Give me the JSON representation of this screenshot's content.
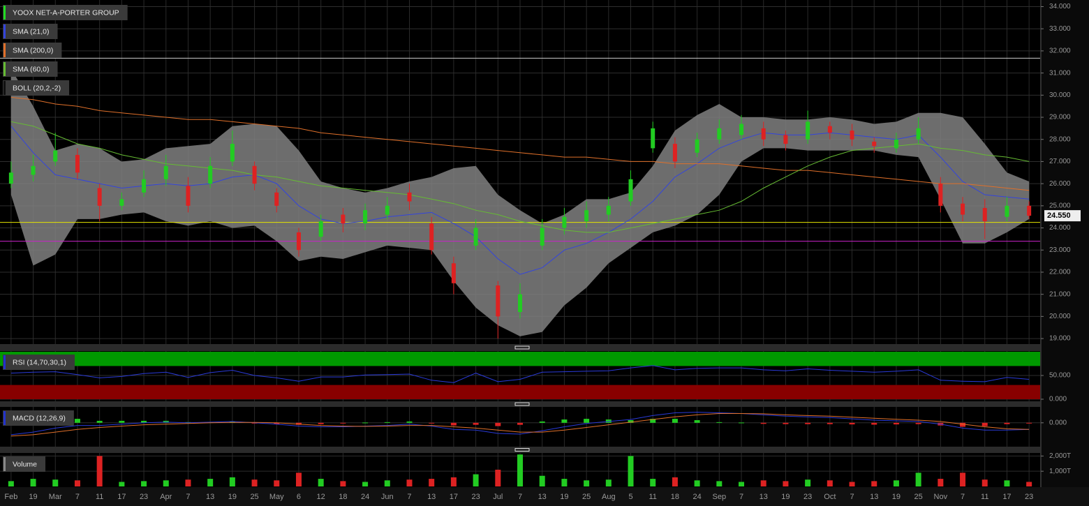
{
  "chart_data": [
    {
      "type": "candlestick",
      "name": "YOOX NET-A-PORTER GROUP",
      "color": "#22dd22",
      "up_color": "#22cc22",
      "down_color": "#dd2222",
      "categories": [
        "Feb",
        "19",
        "Mar",
        "7",
        "11",
        "17",
        "23",
        "Apr",
        "7",
        "13",
        "19",
        "25",
        "May",
        "6",
        "12",
        "18",
        "24",
        "Jun",
        "7",
        "13",
        "17",
        "23",
        "Jul",
        "7",
        "13",
        "19",
        "25",
        "Aug",
        "5",
        "11",
        "18",
        "24",
        "Sep",
        "7",
        "13",
        "19",
        "23",
        "Oct",
        "7",
        "13",
        "19",
        "25",
        "Nov",
        "7",
        "11",
        "17",
        "23"
      ],
      "open": [
        26.0,
        26.4,
        27.0,
        27.3,
        25.8,
        25.0,
        25.6,
        26.2,
        25.9,
        26.0,
        27.0,
        26.8,
        25.6,
        23.8,
        23.6,
        24.6,
        24.2,
        24.6,
        25.6,
        24.2,
        22.4,
        23.2,
        21.4,
        20.2,
        23.2,
        24.0,
        24.3,
        24.6,
        25.2,
        27.6,
        27.8,
        27.4,
        28.0,
        28.2,
        28.5,
        28.2,
        28.0,
        28.6,
        28.4,
        27.9,
        27.6,
        28.0,
        26.0,
        25.1,
        24.9,
        24.5,
        25.0
      ],
      "high": [
        27.0,
        27.3,
        28.3,
        27.6,
        26.0,
        25.6,
        26.6,
        27.3,
        26.3,
        27.2,
        28.4,
        27.0,
        25.8,
        24.0,
        24.6,
        24.9,
        25.1,
        25.4,
        26.0,
        24.5,
        22.7,
        24.4,
        21.6,
        21.5,
        24.4,
        24.9,
        25.2,
        25.4,
        26.6,
        28.8,
        28.1,
        28.3,
        28.9,
        29.1,
        28.8,
        28.4,
        29.3,
        28.8,
        28.7,
        28.1,
        28.3,
        29.0,
        26.3,
        25.4,
        25.3,
        25.4,
        25.2
      ],
      "low": [
        25.8,
        26.1,
        26.8,
        26.2,
        24.3,
        24.8,
        25.4,
        25.9,
        24.7,
        25.8,
        26.8,
        25.7,
        24.7,
        22.7,
        23.4,
        23.8,
        23.9,
        24.4,
        24.8,
        22.8,
        21.0,
        23.0,
        19.0,
        19.9,
        23.0,
        23.7,
        24.0,
        24.3,
        25.0,
        27.4,
        26.7,
        27.2,
        27.8,
        28.0,
        27.7,
        27.5,
        27.8,
        28.0,
        27.7,
        27.4,
        27.4,
        27.8,
        24.7,
        24.3,
        23.5,
        24.3,
        24.4
      ],
      "close": [
        26.5,
        26.8,
        27.5,
        26.5,
        25.0,
        25.3,
        26.2,
        26.8,
        25.0,
        26.8,
        27.8,
        26.0,
        25.0,
        23.0,
        24.3,
        24.2,
        24.8,
        25.0,
        25.2,
        23.0,
        21.5,
        24.0,
        20.0,
        21.0,
        24.0,
        24.5,
        24.8,
        25.0,
        26.2,
        28.5,
        27.0,
        28.0,
        28.5,
        28.7,
        28.0,
        27.8,
        28.8,
        28.3,
        28.0,
        27.7,
        28.0,
        28.5,
        25.0,
        24.6,
        24.3,
        25.0,
        24.55
      ],
      "overlays": [
        {
          "name": "SMA (21,0)",
          "color": "#3344dd",
          "values": [
            28.6,
            27.4,
            26.4,
            26.2,
            26.0,
            25.8,
            25.9,
            26.0,
            25.9,
            26.0,
            26.3,
            26.4,
            26.0,
            25.0,
            24.4,
            24.2,
            24.3,
            24.5,
            24.6,
            24.7,
            24.2,
            23.6,
            22.6,
            21.9,
            22.2,
            23.0,
            23.3,
            23.8,
            24.4,
            25.2,
            26.3,
            26.9,
            27.6,
            28.0,
            28.3,
            28.2,
            28.2,
            28.3,
            28.2,
            28.1,
            28.0,
            28.2,
            27.2,
            26.1,
            25.5,
            25.4,
            25.3
          ]
        },
        {
          "name": "SMA (200,0)",
          "color": "#e0702a",
          "values": [
            29.9,
            29.8,
            29.6,
            29.5,
            29.3,
            29.2,
            29.1,
            29.0,
            28.9,
            28.9,
            28.8,
            28.7,
            28.6,
            28.5,
            28.3,
            28.2,
            28.1,
            28.0,
            27.9,
            27.8,
            27.7,
            27.6,
            27.5,
            27.4,
            27.3,
            27.2,
            27.2,
            27.1,
            27.0,
            27.0,
            26.9,
            26.9,
            26.9,
            26.8,
            26.7,
            26.6,
            26.6,
            26.5,
            26.4,
            26.3,
            26.2,
            26.1,
            26.0,
            26.0,
            25.9,
            25.8,
            25.7
          ]
        },
        {
          "name": "SMA (60,0)",
          "color": "#66bb33",
          "values": [
            28.8,
            28.6,
            28.2,
            27.8,
            27.6,
            27.3,
            27.1,
            26.9,
            26.8,
            26.7,
            26.6,
            26.4,
            26.3,
            26.1,
            25.9,
            25.8,
            25.7,
            25.6,
            25.5,
            25.3,
            25.1,
            24.8,
            24.6,
            24.3,
            24.1,
            23.9,
            23.8,
            23.8,
            24.0,
            24.2,
            24.4,
            24.6,
            24.8,
            25.2,
            25.8,
            26.3,
            26.8,
            27.2,
            27.5,
            27.6,
            27.7,
            27.8,
            27.6,
            27.5,
            27.3,
            27.2,
            27.0
          ]
        }
      ],
      "band": {
        "name": "BOLL (20,2,-2)",
        "color": "#808080",
        "upper": [
          31.2,
          29.5,
          27.5,
          27.8,
          27.6,
          27.0,
          27.1,
          27.6,
          27.7,
          27.8,
          28.6,
          28.7,
          28.6,
          27.5,
          26.1,
          25.8,
          25.6,
          25.8,
          26.1,
          26.3,
          26.7,
          26.8,
          25.5,
          24.8,
          24.2,
          24.6,
          25.3,
          25.3,
          25.6,
          26.8,
          28.4,
          29.1,
          29.6,
          29.0,
          29.0,
          28.9,
          28.9,
          29.0,
          28.9,
          28.7,
          28.8,
          29.2,
          29.2,
          29.0,
          27.8,
          26.5,
          26.1
        ],
        "lower": [
          25.5,
          22.3,
          22.8,
          24.4,
          24.4,
          24.6,
          24.7,
          24.3,
          24.1,
          24.3,
          24.0,
          24.1,
          23.4,
          22.5,
          22.7,
          22.6,
          22.9,
          23.2,
          23.1,
          23.0,
          21.6,
          20.4,
          19.6,
          19.1,
          19.3,
          20.5,
          21.3,
          22.4,
          23.1,
          23.8,
          24.1,
          24.6,
          25.5,
          27.0,
          27.6,
          27.6,
          27.5,
          27.5,
          27.5,
          27.5,
          27.3,
          27.2,
          25.3,
          23.3,
          23.3,
          23.8,
          24.4
        ]
      },
      "hlines": [
        {
          "value": 31.67,
          "color": "#cccccc"
        },
        {
          "value": 24.25,
          "color": "#e6e600"
        },
        {
          "value": 23.4,
          "color": "#cc22cc"
        }
      ],
      "last_price": {
        "value": 24.55,
        "label": "24.550"
      },
      "ylim": [
        18.75,
        34.3
      ],
      "yticks": [
        {
          "value": 19,
          "label": "19.000"
        },
        {
          "value": 20,
          "label": "20.000"
        },
        {
          "value": 21,
          "label": "21.000"
        },
        {
          "value": 22,
          "label": "22.000"
        },
        {
          "value": 23,
          "label": "23.000"
        },
        {
          "value": 24,
          "label": "24.000"
        },
        {
          "value": 25,
          "label": "25.000"
        },
        {
          "value": 26,
          "label": "26.000"
        },
        {
          "value": 27,
          "label": "27.000"
        },
        {
          "value": 28,
          "label": "28.000"
        },
        {
          "value": 29,
          "label": "29.000"
        },
        {
          "value": 30,
          "label": "30.000"
        },
        {
          "value": 31,
          "label": "31.000"
        },
        {
          "value": 32,
          "label": "32.000"
        },
        {
          "value": 33,
          "label": "33.000"
        },
        {
          "value": 34,
          "label": "34.000"
        }
      ],
      "grid": true
    },
    {
      "type": "line",
      "name": "RSI (14,70,30,1)",
      "color": "#2233cc",
      "zones": [
        {
          "from": 70,
          "to": 100,
          "color": "#009900"
        },
        {
          "from": 0,
          "to": 30,
          "color": "#880000"
        }
      ],
      "series": [
        {
          "color": "#2a3ad8",
          "values": [
            55,
            57,
            58,
            52,
            45,
            48,
            54,
            57,
            46,
            56,
            61,
            50,
            45,
            38,
            47,
            47,
            51,
            52,
            53,
            40,
            35,
            55,
            37,
            42,
            57,
            58,
            59,
            60,
            66,
            71,
            62,
            65,
            66,
            66,
            62,
            60,
            64,
            61,
            59,
            57,
            59,
            62,
            40,
            38,
            37,
            46,
            42
          ]
        }
      ],
      "ylim": [
        -4.4,
        101.5
      ],
      "yticks": [
        {
          "value": 0,
          "label": "0.000"
        },
        {
          "value": 50,
          "label": "50.000"
        }
      ],
      "grid": true
    },
    {
      "type": "line",
      "name": "MACD (12,26,9)",
      "color": "#2233cc",
      "series": [
        {
          "color": "#2a3ad8",
          "values": [
            -0.9,
            -0.7,
            -0.4,
            -0.2,
            -0.2,
            -0.1,
            0.0,
            0.05,
            0.0,
            0.05,
            0.1,
            0.0,
            -0.1,
            -0.25,
            -0.3,
            -0.3,
            -0.25,
            -0.2,
            -0.1,
            -0.25,
            -0.5,
            -0.55,
            -0.8,
            -0.85,
            -0.6,
            -0.3,
            -0.05,
            0.1,
            0.25,
            0.55,
            0.75,
            0.8,
            0.75,
            0.7,
            0.6,
            0.5,
            0.45,
            0.4,
            0.3,
            0.2,
            0.15,
            0.1,
            -0.1,
            -0.4,
            -0.55,
            -0.55,
            -0.5
          ]
        },
        {
          "color": "#e0702a",
          "values": [
            -1.0,
            -0.9,
            -0.7,
            -0.5,
            -0.35,
            -0.25,
            -0.15,
            -0.1,
            -0.05,
            0.0,
            0.03,
            0.03,
            0.0,
            -0.1,
            -0.2,
            -0.25,
            -0.27,
            -0.25,
            -0.2,
            -0.2,
            -0.3,
            -0.4,
            -0.55,
            -0.7,
            -0.7,
            -0.55,
            -0.35,
            -0.15,
            0.05,
            0.25,
            0.45,
            0.6,
            0.7,
            0.7,
            0.68,
            0.6,
            0.55,
            0.5,
            0.42,
            0.34,
            0.27,
            0.2,
            0.1,
            -0.1,
            -0.3,
            -0.45,
            -0.5
          ]
        }
      ],
      "histogram": {
        "up_color": "#22cc22",
        "down_color": "#dd2222",
        "values": [
          0.1,
          0.2,
          0.3,
          0.3,
          0.15,
          0.15,
          0.15,
          0.15,
          0.05,
          0.05,
          0.07,
          -0.03,
          -0.1,
          -0.15,
          -0.1,
          -0.05,
          0.02,
          0.05,
          0.1,
          -0.05,
          -0.2,
          -0.15,
          -0.25,
          -0.15,
          0.1,
          0.25,
          0.3,
          0.25,
          0.2,
          0.3,
          0.3,
          0.2,
          0.05,
          0.02,
          -0.08,
          -0.1,
          -0.1,
          -0.1,
          -0.12,
          -0.14,
          -0.12,
          -0.1,
          -0.2,
          -0.3,
          -0.25,
          -0.1,
          -0.02
        ]
      },
      "ylim": [
        -1.8,
        1.2
      ],
      "yticks": [
        {
          "value": 0,
          "label": "0.000"
        }
      ],
      "grid": true
    },
    {
      "type": "bar",
      "name": "Volume",
      "color": "#888888",
      "up_color": "#22cc22",
      "down_color": "#dd2222",
      "values": [
        350,
        500,
        450,
        400,
        2000,
        300,
        350,
        400,
        450,
        500,
        600,
        450,
        400,
        900,
        500,
        350,
        300,
        400,
        450,
        500,
        600,
        800,
        1100,
        2100,
        700,
        500,
        400,
        450,
        2000,
        500,
        600,
        400,
        350,
        300,
        400,
        350,
        450,
        400,
        300,
        350,
        400,
        900,
        500,
        900,
        450,
        400,
        300
      ],
      "ylim": [
        0,
        2200
      ],
      "yticks": [
        {
          "value": 1000,
          "label": "1,000T"
        },
        {
          "value": 2000,
          "label": "2,000T"
        }
      ],
      "grid": true
    }
  ]
}
